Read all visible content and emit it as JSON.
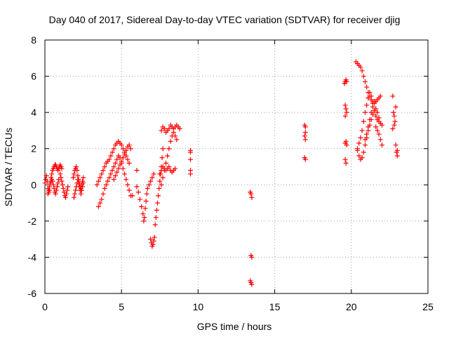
{
  "chart_data": {
    "type": "scatter",
    "title": "Day 040 of 2017, Sidereal Day-to-day VTEC variation (SDTVAR) for receiver djig",
    "xlabel": "GPS time / hours",
    "ylabel": "SDTVAR / TECUs",
    "xlim": [
      0,
      25
    ],
    "ylim": [
      -6,
      8
    ],
    "xticks": [
      0,
      5,
      10,
      15,
      20,
      25
    ],
    "yticks": [
      -6,
      -4,
      -2,
      0,
      2,
      4,
      6,
      8
    ],
    "grid": true,
    "marker": "+",
    "color": "#ff0000",
    "series": [
      {
        "name": "SDTVAR",
        "x": [
          0.0,
          0.05,
          0.1,
          0.15,
          0.2,
          0.25,
          0.3,
          0.35,
          0.4,
          0.45,
          0.5,
          0.55,
          0.6,
          0.65,
          0.7,
          0.75,
          0.8,
          0.85,
          0.9,
          0.95,
          1.0,
          1.05,
          1.1,
          0.2,
          0.25,
          0.3,
          0.35,
          0.4,
          0.45,
          0.5,
          0.55,
          0.6,
          0.65,
          0.7,
          0.75,
          0.8,
          0.85,
          0.9,
          1.0,
          1.05,
          1.1,
          1.15,
          1.2,
          1.25,
          1.3,
          1.35,
          1.4,
          1.45,
          1.5,
          1.85,
          1.9,
          1.95,
          2.0,
          2.05,
          2.1,
          2.15,
          2.2,
          2.25,
          2.3,
          2.35,
          2.4,
          2.45,
          2.5,
          1.9,
          1.95,
          2.0,
          2.05,
          2.1,
          2.15,
          2.2,
          2.25,
          2.3,
          2.35,
          2.4,
          2.45,
          2.5,
          3.4,
          3.5,
          3.6,
          3.7,
          3.8,
          3.9,
          4.0,
          4.1,
          4.2,
          4.3,
          4.4,
          4.5,
          4.6,
          4.7,
          4.8,
          4.9,
          5.0,
          5.1,
          5.2,
          5.3,
          5.4,
          5.5,
          3.5,
          3.6,
          3.7,
          3.8,
          3.9,
          4.0,
          4.1,
          4.2,
          4.3,
          4.4,
          4.5,
          4.6,
          4.7,
          4.8,
          4.9,
          5.0,
          5.1,
          5.2,
          5.3,
          5.4,
          5.5,
          5.6,
          5.7,
          4.5,
          4.6,
          4.7,
          4.8,
          4.9,
          5.0,
          5.1,
          5.2,
          5.3,
          5.4,
          5.5,
          5.6,
          6.0,
          6.0,
          6.1,
          6.2,
          6.3,
          6.4,
          6.45,
          6.5,
          6.55,
          6.6,
          6.65,
          6.7,
          6.8,
          6.9,
          7.0,
          7.1,
          6.9,
          6.95,
          7.0,
          7.05,
          7.1,
          7.15,
          7.2,
          7.25,
          7.3,
          7.35,
          7.4,
          7.45,
          7.5,
          7.55,
          7.6,
          7.65,
          7.7,
          7.6,
          7.7,
          7.8,
          7.9,
          8.0,
          8.1,
          8.2,
          8.3,
          8.4,
          8.5,
          8.6,
          7.6,
          7.7,
          7.8,
          7.9,
          8.0,
          8.1,
          8.2,
          8.3,
          8.4,
          8.5,
          8.6,
          8.7,
          8.8,
          7.5,
          7.6,
          7.7,
          7.8,
          7.9,
          8.0,
          8.1,
          8.2,
          8.3,
          8.4,
          8.5,
          9.5,
          9.5,
          9.5,
          9.5,
          9.5,
          13.4,
          13.45,
          13.5,
          13.45,
          13.5,
          13.4,
          13.45,
          13.5,
          16.95,
          17.0,
          17.0,
          16.95,
          17.0,
          16.95,
          17.0,
          19.55,
          19.6,
          19.65,
          19.7,
          19.6,
          19.65,
          19.7,
          19.6,
          19.65,
          19.6,
          19.7,
          19.6,
          19.65,
          20.3,
          20.4,
          20.5,
          20.6,
          20.7,
          20.8,
          20.9,
          21.0,
          21.1,
          21.2,
          21.3,
          21.4,
          21.5,
          21.6,
          21.7,
          21.8,
          21.9,
          20.4,
          20.5,
          20.6,
          20.7,
          20.8,
          20.9,
          21.0,
          21.1,
          21.2,
          21.3,
          21.4,
          21.5,
          21.6,
          21.7,
          21.8,
          21.9,
          22.0,
          20.4,
          20.5,
          20.6,
          20.7,
          20.8,
          20.9,
          21.0,
          21.1,
          21.2,
          21.3,
          21.4,
          21.5,
          21.6,
          21.7,
          21.8,
          20.9,
          21.0,
          21.1,
          21.2,
          21.3,
          21.4,
          21.5,
          21.6,
          21.7,
          21.8,
          21.9,
          22.0,
          22.7,
          22.75,
          22.8,
          22.85,
          22.9,
          22.95,
          23.0,
          22.7,
          22.8,
          22.9,
          23.0
        ],
        "y": [
          0.1,
          0.3,
          0.5,
          0.2,
          -0.2,
          -0.4,
          -0.3,
          0.1,
          0.4,
          0.6,
          0.8,
          0.9,
          1.0,
          1.1,
          1.1,
          1.0,
          0.9,
          0.8,
          0.9,
          1.0,
          1.1,
          1.0,
          0.9,
          -0.5,
          -0.3,
          -0.1,
          0.1,
          0.2,
          0.3,
          0.2,
          0.0,
          -0.2,
          -0.4,
          -0.5,
          -0.3,
          -0.1,
          0.1,
          0.3,
          0.6,
          0.4,
          0.2,
          0.0,
          -0.2,
          -0.4,
          -0.6,
          -0.7,
          -0.5,
          -0.3,
          -0.1,
          0.4,
          0.6,
          0.8,
          0.9,
          1.0,
          0.8,
          0.5,
          0.3,
          0.1,
          -0.1,
          -0.2,
          0.0,
          0.2,
          0.4,
          -0.7,
          -0.5,
          -0.3,
          -0.1,
          0.1,
          0.3,
          0.1,
          -0.1,
          -0.3,
          -0.5,
          -0.3,
          -0.1,
          0.1,
          0.0,
          0.2,
          0.4,
          0.6,
          0.8,
          1.0,
          1.2,
          1.3,
          1.4,
          1.6,
          1.8,
          2.0,
          2.2,
          2.3,
          2.4,
          2.3,
          2.2,
          2.0,
          1.8,
          1.6,
          1.4,
          1.2,
          -1.2,
          -1.0,
          -0.8,
          -0.5,
          -0.2,
          0.0,
          0.2,
          0.4,
          0.6,
          0.8,
          1.0,
          1.2,
          1.4,
          1.6,
          1.5,
          1.2,
          0.9,
          0.6,
          0.3,
          0.0,
          -0.3,
          -0.6,
          -0.6,
          0.3,
          0.5,
          0.7,
          0.9,
          1.1,
          1.3,
          1.5,
          1.7,
          1.9,
          2.1,
          2.2,
          2.0,
          0.8,
          -0.1,
          -0.4,
          -0.8,
          -1.2,
          -1.6,
          -2.0,
          -1.8,
          -1.3,
          -0.9,
          -0.5,
          -0.2,
          0.0,
          0.2,
          0.4,
          0.6,
          -3.0,
          -3.2,
          -3.4,
          -3.3,
          -3.1,
          -2.9,
          -2.2,
          -1.8,
          -1.4,
          -1.0,
          -0.6,
          -0.2,
          0.2,
          0.6,
          1.0,
          1.5,
          2.0,
          0.0,
          0.4,
          0.8,
          1.2,
          1.6,
          2.0,
          2.4,
          2.7,
          2.9,
          2.7,
          2.5,
          3.0,
          3.2,
          3.1,
          2.9,
          3.0,
          3.1,
          3.3,
          3.2,
          3.1,
          3.2,
          3.3,
          3.2,
          3.1,
          0.6,
          0.8,
          1.0,
          0.9,
          0.8,
          0.9,
          1.0,
          0.8,
          0.7,
          0.8,
          0.9,
          1.9,
          1.8,
          1.4,
          0.8,
          0.6,
          -0.4,
          -0.5,
          -0.7,
          -3.9,
          -4.0,
          -5.3,
          -5.4,
          -5.5,
          3.3,
          3.2,
          2.9,
          2.7,
          2.5,
          1.5,
          1.4,
          5.6,
          5.7,
          5.8,
          5.7,
          4.4,
          4.2,
          4.0,
          3.8,
          2.4,
          2.3,
          2.2,
          1.4,
          1.2,
          6.8,
          6.7,
          6.6,
          6.5,
          6.3,
          6.0,
          5.7,
          5.4,
          5.1,
          4.9,
          4.7,
          4.6,
          4.5,
          4.6,
          4.7,
          4.8,
          4.9,
          2.0,
          2.3,
          2.6,
          3.0,
          3.5,
          4.0,
          4.4,
          4.8,
          5.1,
          4.9,
          4.5,
          4.1,
          3.8,
          3.6,
          3.5,
          3.4,
          3.3,
          1.9,
          1.6,
          1.4,
          1.5,
          1.8,
          2.2,
          2.6,
          3.0,
          3.3,
          3.6,
          3.9,
          4.1,
          4.2,
          4.0,
          3.7,
          2.5,
          2.8,
          3.2,
          3.6,
          4.0,
          4.3,
          4.6,
          3.2,
          3.0,
          2.8,
          2.5,
          2.2,
          4.9,
          4.0,
          3.8,
          3.5,
          2.2,
          1.8,
          1.6,
          3.1,
          3.3,
          4.3,
          1.9
        ]
      }
    ]
  }
}
